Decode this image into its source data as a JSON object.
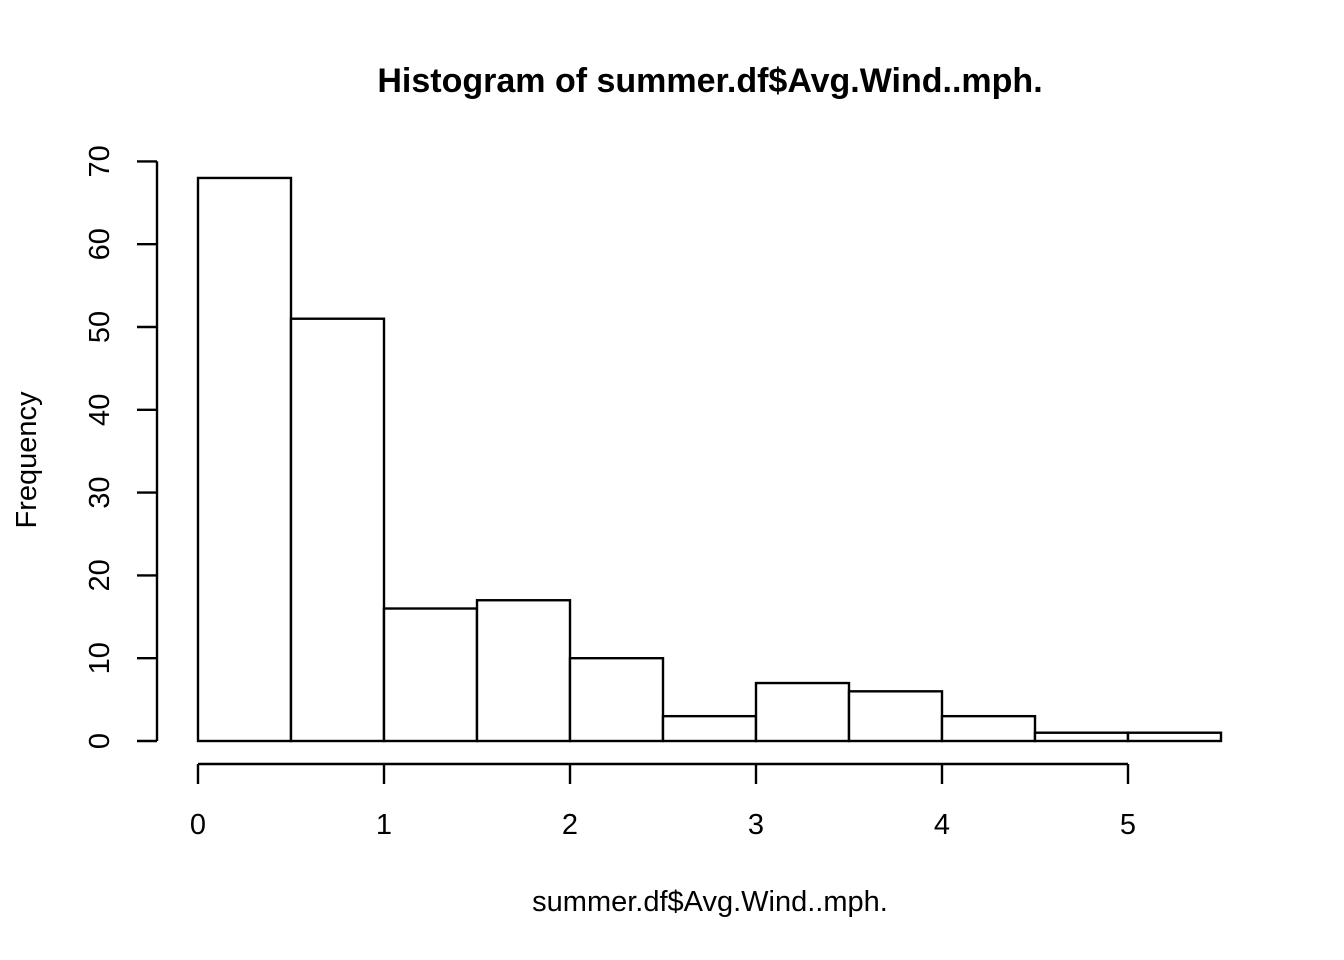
{
  "chart_data": {
    "type": "bar",
    "title": "Histogram of summer.df$Avg.Wind..mph.",
    "xlabel": "summer.df$Avg.Wind..mph.",
    "ylabel": "Frequency",
    "bin_edges": [
      0,
      0.5,
      1,
      1.5,
      2,
      2.5,
      3,
      3.5,
      4,
      4.5,
      5,
      5.5
    ],
    "values": [
      68,
      51,
      16,
      17,
      10,
      3,
      7,
      6,
      3,
      1,
      1
    ],
    "x_ticks": [
      0,
      1,
      2,
      3,
      4,
      5
    ],
    "y_ticks": [
      0,
      10,
      20,
      30,
      40,
      50,
      60,
      70
    ],
    "xlim": [
      0,
      5.5
    ],
    "ylim": [
      0,
      70
    ],
    "grid": false,
    "legend": "none"
  }
}
